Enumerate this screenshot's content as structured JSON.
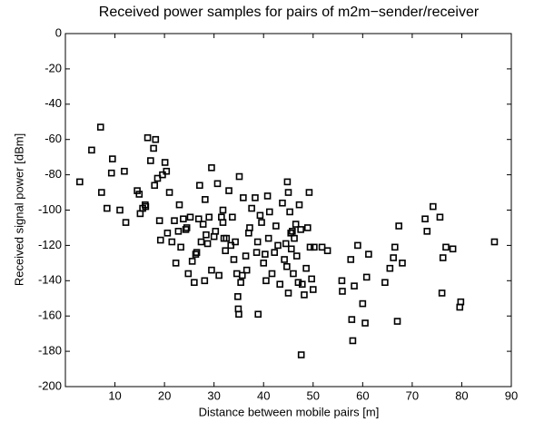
{
  "chart_data": {
    "type": "scatter",
    "title": "Received power samples for pairs of m2m−sender/receiver",
    "x_label": "Distance between mobile pairs [m]",
    "y_label": "Received signal power [dBm]",
    "color": "#000000",
    "x": [
      2.9,
      5.3,
      7.1,
      7.3,
      8.4,
      9.5,
      9.3,
      11,
      11.9,
      12.2,
      14.5,
      14.9,
      15.1,
      15.6,
      16.1,
      16.2,
      16.6,
      17.2,
      17.8,
      18.2,
      18.6,
      18,
      19,
      19.2,
      19.6,
      20.6,
      20.1,
      20.4,
      21,
      21.5,
      22,
      22.3,
      22.8,
      23,
      23.3,
      23.8,
      24.3,
      24.5,
      24.8,
      25.2,
      25.6,
      26,
      26.3,
      26.5,
      26.9,
      27.1,
      27.4,
      27.8,
      28.1,
      28.2,
      28.4,
      28.7,
      29,
      29.5,
      29.5,
      30,
      30.3,
      30.7,
      31,
      31.5,
      31.8,
      31.8,
      32,
      32.3,
      32.5,
      33,
      33.4,
      33.7,
      34,
      34.3,
      34.6,
      34.8,
      34.9,
      35,
      35.1,
      35.4,
      35.7,
      35.9,
      36.4,
      36.6,
      37,
      37.2,
      37.6,
      38.3,
      38.6,
      38.9,
      38.8,
      39.3,
      39.6,
      40,
      40.3,
      40.5,
      40.8,
      41,
      41.2,
      41.7,
      42.2,
      42.5,
      42.9,
      43.3,
      43.8,
      44.2,
      44.5,
      44.7,
      44.8,
      45,
      45,
      45.3,
      45.5,
      45.6,
      45.8,
      46,
      46.2,
      46.5,
      46.7,
      47,
      47.2,
      47.5,
      47.6,
      47.8,
      48.2,
      48.6,
      48.9,
      49.2,
      49.4,
      49.7,
      50,
      50.2,
      51.8,
      52.9,
      55.8,
      55.9,
      57.6,
      57.8,
      58,
      58.3,
      59,
      60,
      60.5,
      60.8,
      61.2,
      64.5,
      65.5,
      66.2,
      66.5,
      67,
      67.3,
      68,
      72.6,
      73,
      74.2,
      75.6,
      76,
      76.2,
      76.8,
      78.2,
      79.6,
      79.8,
      86.6
    ],
    "values": [
      -84,
      -66,
      -53,
      -90,
      -99,
      -71,
      -79,
      -100,
      -78,
      -107,
      -89,
      -91,
      -102,
      -99,
      -97,
      -98,
      -59,
      -72,
      -65,
      -60,
      -82,
      -86,
      -106,
      -117,
      -80,
      -113,
      -73,
      -78,
      -90,
      -118,
      -106,
      -130,
      -112,
      -97,
      -121,
      -105,
      -111,
      -110,
      -136,
      -104,
      -129,
      -141,
      -125,
      -124,
      -105,
      -86,
      -118,
      -108,
      -140,
      -94,
      -114,
      -119,
      -104,
      -76,
      -134,
      -115,
      -112,
      -85,
      -137,
      -104,
      -100,
      -107,
      -116,
      -123,
      -116,
      -89,
      -120,
      -104,
      -128,
      -118,
      -136,
      -149,
      -156,
      -159,
      -81,
      -141,
      -137,
      -93,
      -126,
      -134,
      -113,
      -110,
      -99,
      -93,
      -124,
      -159,
      -118,
      -103,
      -107,
      -130,
      -125,
      -140,
      -92,
      -116,
      -101,
      -136,
      -124,
      -109,
      -120,
      -142,
      -96,
      -128,
      -119,
      -132,
      -84,
      -90,
      -147,
      -101,
      -113,
      -122,
      -112,
      -136,
      -116,
      -108,
      -126,
      -141,
      -97,
      -111,
      -182,
      -142,
      -148,
      -133,
      -110,
      -90,
      -121,
      -139,
      -145,
      -121,
      -121,
      -123,
      -140,
      -146,
      -128,
      -162,
      -174,
      -143,
      -120,
      -153,
      -164,
      -138,
      -125,
      -141,
      -133,
      -127,
      -121,
      -163,
      -109,
      -130,
      -105,
      -112,
      -98,
      -104,
      -147,
      -127,
      -121,
      -122,
      -155,
      -152,
      -118
    ],
    "xlim": [
      0,
      90
    ],
    "xticks": [
      10,
      20,
      30,
      40,
      50,
      60,
      70,
      80,
      90
    ],
    "ylim": [
      -200,
      0
    ],
    "yticks": [
      -200,
      -180,
      -160,
      -140,
      -120,
      -100,
      -80,
      -60,
      -40,
      -20,
      0
    ]
  }
}
